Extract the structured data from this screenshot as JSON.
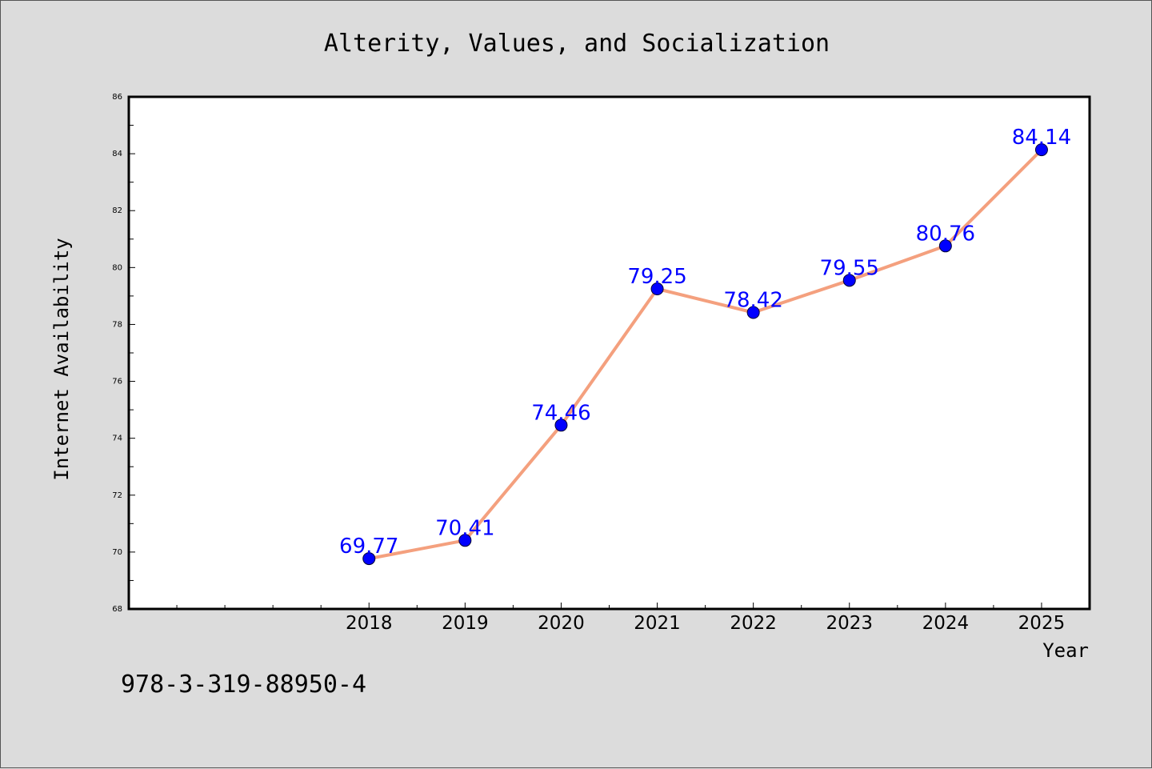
{
  "chart_data": {
    "type": "line",
    "title": "Alterity, Values, and Socialization",
    "xlabel": "Year",
    "ylabel": "Internet Availability",
    "x": [
      "2018",
      "2019",
      "2020",
      "2021",
      "2022",
      "2023",
      "2024",
      "2025"
    ],
    "series": [
      {
        "values": [
          69.77,
          70.41,
          74.46,
          79.25,
          78.42,
          79.55,
          80.76,
          84.14
        ],
        "value_labels": [
          "69.77",
          "70.41",
          "74.46",
          "79.25",
          "78.42",
          "79.55",
          "80.76",
          "84.14"
        ],
        "line_color": "#f4a07e",
        "marker_color": "#0000ff"
      }
    ],
    "ylim": [
      68,
      86
    ],
    "yticks": [
      "68",
      "70",
      "72",
      "74",
      "76",
      "78",
      "80",
      "82",
      "84",
      "86"
    ],
    "x_range_years": [
      2015.5,
      2025.5
    ],
    "grid": false,
    "legend": "none",
    "annotation": "978-3-319-88950-4"
  },
  "colors": {
    "background": "#dcdcdc",
    "plot_background": "#ffffff",
    "line": "#f4a07e",
    "marker": "#0000ff",
    "label": "#0000ff"
  }
}
